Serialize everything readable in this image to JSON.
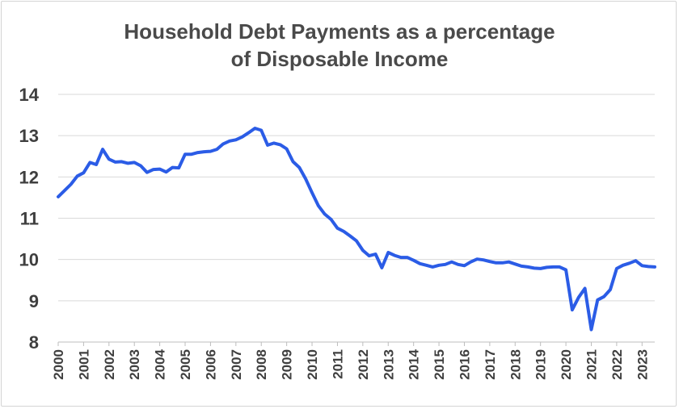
{
  "chart_data": {
    "type": "line",
    "title_lines": [
      "Household Debt Payments as a percentage",
      "of Disposable Income"
    ],
    "xlabel": "",
    "ylabel": "",
    "ylim": [
      8,
      14
    ],
    "yticks": [
      8,
      9,
      10,
      11,
      12,
      13,
      14
    ],
    "xlim": [
      2000,
      2023.5
    ],
    "xticks": [
      "2000",
      "2001",
      "2002",
      "2003",
      "2004",
      "2005",
      "2006",
      "2007",
      "2008",
      "2009",
      "2010",
      "2011",
      "2012",
      "2013",
      "2014",
      "2015",
      "2016",
      "2017",
      "2018",
      "2019",
      "2020",
      "2021",
      "2022",
      "2023"
    ],
    "grid": "horizontal",
    "line_color": "#2b5ce6",
    "series": [
      {
        "x": [
          2000.0,
          2000.25,
          2000.5,
          2000.75,
          2001.0,
          2001.25,
          2001.5,
          2001.75,
          2002.0,
          2002.25,
          2002.5,
          2002.75,
          2003.0,
          2003.25,
          2003.5,
          2003.75,
          2004.0,
          2004.25,
          2004.5,
          2004.75,
          2005.0,
          2005.25,
          2005.5,
          2005.75,
          2006.0,
          2006.25,
          2006.5,
          2006.75,
          2007.0,
          2007.25,
          2007.5,
          2007.75,
          2008.0,
          2008.25,
          2008.5,
          2008.75,
          2009.0,
          2009.25,
          2009.5,
          2009.75,
          2010.0,
          2010.25,
          2010.5,
          2010.75,
          2011.0,
          2011.25,
          2011.5,
          2011.75,
          2012.0,
          2012.25,
          2012.5,
          2012.75,
          2013.0,
          2013.25,
          2013.5,
          2013.75,
          2014.0,
          2014.25,
          2014.5,
          2014.75,
          2015.0,
          2015.25,
          2015.5,
          2015.75,
          2016.0,
          2016.25,
          2016.5,
          2016.75,
          2017.0,
          2017.25,
          2017.5,
          2017.75,
          2018.0,
          2018.25,
          2018.5,
          2018.75,
          2019.0,
          2019.25,
          2019.5,
          2019.75,
          2020.0,
          2020.25,
          2020.5,
          2020.75,
          2021.0,
          2021.25,
          2021.5,
          2021.75,
          2022.0,
          2022.25,
          2022.5,
          2022.75,
          2023.0,
          2023.25,
          2023.5
        ],
        "y": [
          11.52,
          11.67,
          11.82,
          12.02,
          12.1,
          12.35,
          12.3,
          12.67,
          12.43,
          12.36,
          12.37,
          12.33,
          12.35,
          12.27,
          12.11,
          12.18,
          12.19,
          12.12,
          12.23,
          12.22,
          12.55,
          12.55,
          12.59,
          12.61,
          12.62,
          12.67,
          12.8,
          12.87,
          12.9,
          12.97,
          13.07,
          13.18,
          13.13,
          12.77,
          12.82,
          12.78,
          12.68,
          12.37,
          12.23,
          11.95,
          11.62,
          11.3,
          11.1,
          10.97,
          10.76,
          10.68,
          10.57,
          10.45,
          10.22,
          10.09,
          10.13,
          9.8,
          10.17,
          10.1,
          10.05,
          10.05,
          9.98,
          9.9,
          9.86,
          9.82,
          9.86,
          9.88,
          9.94,
          9.88,
          9.85,
          9.94,
          10.01,
          9.99,
          9.95,
          9.92,
          9.92,
          9.94,
          9.89,
          9.84,
          9.82,
          9.79,
          9.78,
          9.81,
          9.82,
          9.82,
          9.75,
          8.78,
          9.08,
          9.3,
          8.3,
          9.02,
          9.1,
          9.27,
          9.78,
          9.86,
          9.91,
          9.97,
          9.85,
          9.83,
          9.82
        ]
      }
    ]
  }
}
